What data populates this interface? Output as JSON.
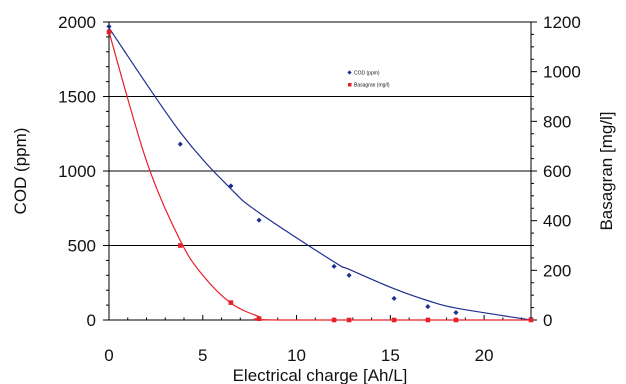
{
  "chart_data": {
    "type": "scatter",
    "xlabel": "Electrical charge [Ah/L]",
    "ylabel_left": "COD (ppm)",
    "ylabel_right": "Basagran [mg/l]",
    "xlim": [
      0,
      22.5
    ],
    "ylim_left": [
      0,
      2000
    ],
    "ylim_right": [
      0,
      1200
    ],
    "x_ticks": [
      0,
      5,
      10,
      15,
      20
    ],
    "y_ticks_left": [
      0,
      500,
      1000,
      1500,
      2000
    ],
    "y_ticks_right": [
      0,
      200,
      400,
      600,
      800,
      1000,
      1200
    ],
    "grid": "horizontal",
    "legend_position": "top-right",
    "series": [
      {
        "name": "COD (ppm)",
        "axis": "left",
        "color": "#1f2f8f",
        "marker": "diamond",
        "x": [
          0,
          3.8,
          6.5,
          8,
          12,
          12.8,
          15.2,
          17,
          18.5,
          22.5
        ],
        "y": [
          1970,
          1180,
          900,
          670,
          360,
          300,
          145,
          90,
          50,
          10
        ],
        "fit_points": [
          [
            0,
            1960
          ],
          [
            3.8,
            1260
          ],
          [
            6.5,
            880
          ],
          [
            8,
            720
          ],
          [
            12,
            390
          ],
          [
            12.8,
            340
          ],
          [
            15.2,
            210
          ],
          [
            17,
            130
          ],
          [
            18.5,
            80
          ],
          [
            22.5,
            0
          ]
        ]
      },
      {
        "name": "Basagran (mg/l)",
        "axis": "right",
        "color": "#e8202a",
        "marker": "square",
        "x": [
          0,
          3.8,
          6.5,
          8,
          12,
          12.8,
          15.2,
          17,
          18.5,
          22.5
        ],
        "y": [
          1160,
          300,
          70,
          5,
          0,
          0,
          0,
          0,
          0,
          0
        ],
        "fit_points": [
          [
            0,
            1160
          ],
          [
            2,
            640
          ],
          [
            3.8,
            320
          ],
          [
            5,
            180
          ],
          [
            6.5,
            68
          ],
          [
            8,
            14
          ],
          [
            9,
            0
          ],
          [
            22.5,
            0
          ]
        ]
      }
    ]
  }
}
